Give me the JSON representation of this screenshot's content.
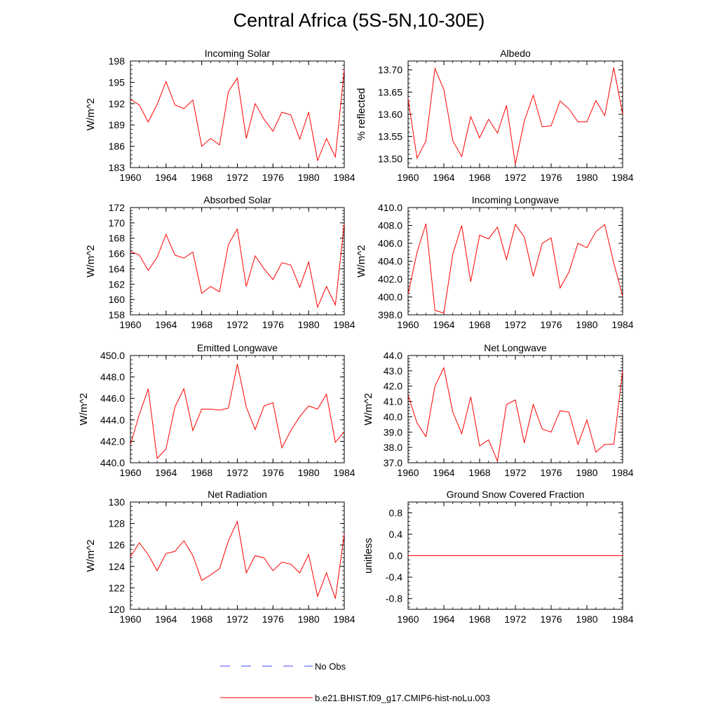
{
  "title": "Central Africa (5S-5N,10-30E)",
  "line_color": "#ff0000",
  "obs_color": "#4a4aff",
  "legend": {
    "obs_label": "No Obs",
    "model_label": "b.e21.BHIST.f09_g17.CMIP6-hist-noLu.003"
  },
  "chart_data": [
    {
      "type": "line",
      "title": "Incoming Solar",
      "ylabel": "W/m^2",
      "xlim": [
        1960,
        1984
      ],
      "ylim": [
        183,
        198
      ],
      "yticks": [
        183,
        186,
        189,
        192,
        195,
        198
      ],
      "ytick_labels": [
        "183",
        "186",
        "189",
        "192",
        "195",
        "198"
      ],
      "xticks": [
        1960,
        1964,
        1968,
        1972,
        1976,
        1980,
        1984
      ],
      "xtick_labels": [
        "1960",
        "1964",
        "1968",
        "1972",
        "1976",
        "1980",
        "1984"
      ],
      "x": [
        1960,
        1961,
        1962,
        1963,
        1964,
        1965,
        1966,
        1967,
        1968,
        1969,
        1970,
        1971,
        1972,
        1973,
        1974,
        1975,
        1976,
        1977,
        1978,
        1979,
        1980,
        1981,
        1982,
        1983,
        1984
      ],
      "values": [
        192.6,
        191.8,
        189.4,
        191.9,
        195.1,
        191.8,
        191.3,
        192.5,
        186.0,
        187.1,
        186.2,
        193.7,
        195.6,
        187.1,
        192.0,
        189.8,
        188.1,
        190.8,
        190.4,
        187.0,
        190.8,
        184.0,
        187.1,
        184.5,
        196.8
      ]
    },
    {
      "type": "line",
      "title": "Albedo",
      "ylabel": "% reflected",
      "xlim": [
        1960,
        1984
      ],
      "ylim": [
        13.48,
        13.72
      ],
      "yticks": [
        13.5,
        13.55,
        13.6,
        13.65,
        13.7
      ],
      "ytick_labels": [
        "13.50",
        "13.55",
        "13.60",
        "13.65",
        "13.70"
      ],
      "xticks": [
        1960,
        1964,
        1968,
        1972,
        1976,
        1980,
        1984
      ],
      "xtick_labels": [
        "1960",
        "1964",
        "1968",
        "1972",
        "1976",
        "1980",
        "1984"
      ],
      "x": [
        1960,
        1961,
        1962,
        1963,
        1964,
        1965,
        1966,
        1967,
        1968,
        1969,
        1970,
        1971,
        1972,
        1973,
        1974,
        1975,
        1976,
        1977,
        1978,
        1979,
        1980,
        1981,
        1982,
        1983,
        1984
      ],
      "values": [
        13.635,
        13.501,
        13.54,
        13.703,
        13.656,
        13.54,
        13.505,
        13.595,
        13.547,
        13.589,
        13.558,
        13.62,
        13.488,
        13.585,
        13.643,
        13.572,
        13.574,
        13.63,
        13.612,
        13.583,
        13.583,
        13.631,
        13.597,
        13.705,
        13.6
      ]
    },
    {
      "type": "line",
      "title": "Absorbed Solar",
      "ylabel": "W/m^2",
      "xlim": [
        1960,
        1984
      ],
      "ylim": [
        158,
        172
      ],
      "yticks": [
        158,
        160,
        162,
        164,
        166,
        168,
        170,
        172
      ],
      "ytick_labels": [
        "158",
        "160",
        "162",
        "164",
        "166",
        "168",
        "170",
        "172"
      ],
      "xticks": [
        1960,
        1964,
        1968,
        1972,
        1976,
        1980,
        1984
      ],
      "xtick_labels": [
        "1960",
        "1964",
        "1968",
        "1972",
        "1976",
        "1980",
        "1984"
      ],
      "x": [
        1960,
        1961,
        1962,
        1963,
        1964,
        1965,
        1966,
        1967,
        1968,
        1969,
        1970,
        1971,
        1972,
        1973,
        1974,
        1975,
        1976,
        1977,
        1978,
        1979,
        1980,
        1981,
        1982,
        1983,
        1984
      ],
      "values": [
        166.3,
        165.8,
        163.8,
        165.5,
        168.5,
        165.8,
        165.4,
        166.2,
        160.8,
        161.7,
        161.0,
        167.2,
        169.2,
        161.7,
        165.7,
        164.0,
        162.6,
        164.8,
        164.5,
        161.6,
        164.9,
        159.0,
        161.7,
        159.3,
        169.9
      ]
    },
    {
      "type": "line",
      "title": "Incoming Longwave",
      "ylabel": "W/m^2",
      "xlim": [
        1960,
        1984
      ],
      "ylim": [
        398,
        410
      ],
      "yticks": [
        398,
        400,
        402,
        404,
        406,
        408,
        410
      ],
      "ytick_labels": [
        "398.0",
        "400.0",
        "402.0",
        "404.0",
        "406.0",
        "408.0",
        "410.0"
      ],
      "xticks": [
        1960,
        1964,
        1968,
        1972,
        1976,
        1980,
        1984
      ],
      "xtick_labels": [
        "1960",
        "1964",
        "1968",
        "1972",
        "1976",
        "1980",
        "1984"
      ],
      "x": [
        1960,
        1961,
        1962,
        1963,
        1964,
        1965,
        1966,
        1967,
        1968,
        1969,
        1970,
        1971,
        1972,
        1973,
        1974,
        1975,
        1976,
        1977,
        1978,
        1979,
        1980,
        1981,
        1982,
        1983,
        1984
      ],
      "values": [
        400.3,
        405.0,
        408.2,
        398.5,
        398.2,
        404.8,
        408.0,
        401.7,
        406.9,
        406.5,
        407.8,
        404.2,
        408.1,
        406.7,
        402.3,
        406.0,
        406.6,
        401.0,
        402.8,
        406.0,
        405.5,
        407.3,
        408.1,
        403.8,
        400.1
      ]
    },
    {
      "type": "line",
      "title": "Emitted Longwave",
      "ylabel": "W/m^2",
      "xlim": [
        1960,
        1984
      ],
      "ylim": [
        440,
        450
      ],
      "yticks": [
        440,
        442,
        444,
        446,
        448,
        450
      ],
      "ytick_labels": [
        "440.0",
        "442.0",
        "444.0",
        "446.0",
        "448.0",
        "450.0"
      ],
      "xticks": [
        1960,
        1964,
        1968,
        1972,
        1976,
        1980,
        1984
      ],
      "xtick_labels": [
        "1960",
        "1964",
        "1968",
        "1972",
        "1976",
        "1980",
        "1984"
      ],
      "x": [
        1960,
        1961,
        1962,
        1963,
        1964,
        1965,
        1966,
        1967,
        1968,
        1969,
        1970,
        1971,
        1972,
        1973,
        1974,
        1975,
        1976,
        1977,
        1978,
        1979,
        1980,
        1981,
        1982,
        1983,
        1984
      ],
      "values": [
        441.7,
        444.5,
        446.9,
        440.4,
        441.3,
        445.2,
        446.9,
        443.0,
        445.0,
        445.0,
        444.9,
        445.1,
        449.2,
        445.2,
        443.1,
        445.3,
        445.6,
        441.4,
        443.0,
        444.3,
        445.3,
        445.0,
        446.4,
        441.9,
        442.9
      ]
    },
    {
      "type": "line",
      "title": "Net Longwave",
      "ylabel": "W/m^2",
      "xlim": [
        1960,
        1984
      ],
      "ylim": [
        37,
        44
      ],
      "yticks": [
        37,
        38,
        39,
        40,
        41,
        42,
        43,
        44
      ],
      "ytick_labels": [
        "37.0",
        "38.0",
        "39.0",
        "40.0",
        "41.0",
        "42.0",
        "43.0",
        "44.0"
      ],
      "xticks": [
        1960,
        1964,
        1968,
        1972,
        1976,
        1980,
        1984
      ],
      "xtick_labels": [
        "1960",
        "1964",
        "1968",
        "1972",
        "1976",
        "1980",
        "1984"
      ],
      "x": [
        1960,
        1961,
        1962,
        1963,
        1964,
        1965,
        1966,
        1967,
        1968,
        1969,
        1970,
        1971,
        1972,
        1973,
        1974,
        1975,
        1976,
        1977,
        1978,
        1979,
        1980,
        1981,
        1982,
        1983,
        1984
      ],
      "values": [
        41.4,
        39.6,
        38.7,
        42.0,
        43.2,
        40.3,
        38.9,
        41.3,
        38.1,
        38.5,
        37.1,
        40.8,
        41.1,
        38.3,
        40.8,
        39.2,
        39.0,
        40.4,
        40.3,
        38.2,
        39.8,
        37.7,
        38.2,
        38.2,
        43.0
      ]
    },
    {
      "type": "line",
      "title": "Net Radiation",
      "ylabel": "W/m^2",
      "xlim": [
        1960,
        1984
      ],
      "ylim": [
        120,
        130
      ],
      "yticks": [
        120,
        122,
        124,
        126,
        128,
        130
      ],
      "ytick_labels": [
        "120",
        "122",
        "124",
        "126",
        "128",
        "130"
      ],
      "xticks": [
        1960,
        1964,
        1968,
        1972,
        1976,
        1980,
        1984
      ],
      "xtick_labels": [
        "1960",
        "1964",
        "1968",
        "1972",
        "1976",
        "1980",
        "1984"
      ],
      "x": [
        1960,
        1961,
        1962,
        1963,
        1964,
        1965,
        1966,
        1967,
        1968,
        1969,
        1970,
        1971,
        1972,
        1973,
        1974,
        1975,
        1976,
        1977,
        1978,
        1979,
        1980,
        1981,
        1982,
        1983,
        1984
      ],
      "values": [
        124.9,
        126.2,
        125.1,
        123.6,
        125.2,
        125.4,
        126.4,
        125.0,
        122.7,
        123.2,
        123.8,
        126.4,
        128.2,
        123.4,
        125.0,
        124.8,
        123.6,
        124.4,
        124.2,
        123.4,
        125.1,
        121.2,
        123.4,
        121.0,
        127.0
      ]
    },
    {
      "type": "line",
      "title": "Ground Snow Covered Fraction",
      "ylabel": "unitless",
      "xlim": [
        1960,
        1984
      ],
      "ylim": [
        -1.0,
        1.0
      ],
      "yticks": [
        -0.8,
        -0.4,
        0.0,
        0.4,
        0.8
      ],
      "ytick_labels": [
        "-0.8",
        "-0.4",
        "0.0",
        "0.4",
        "0.8"
      ],
      "xticks": [
        1960,
        1964,
        1968,
        1972,
        1976,
        1980,
        1984
      ],
      "xtick_labels": [
        "1960",
        "1964",
        "1968",
        "1972",
        "1976",
        "1980",
        "1984"
      ],
      "x": [
        1960,
        1961,
        1962,
        1963,
        1964,
        1965,
        1966,
        1967,
        1968,
        1969,
        1970,
        1971,
        1972,
        1973,
        1974,
        1975,
        1976,
        1977,
        1978,
        1979,
        1980,
        1981,
        1982,
        1983,
        1984
      ],
      "values": [
        0,
        0,
        0,
        0,
        0,
        0,
        0,
        0,
        0,
        0,
        0,
        0,
        0,
        0,
        0,
        0,
        0,
        0,
        0,
        0,
        0,
        0,
        0,
        0,
        0
      ]
    }
  ]
}
